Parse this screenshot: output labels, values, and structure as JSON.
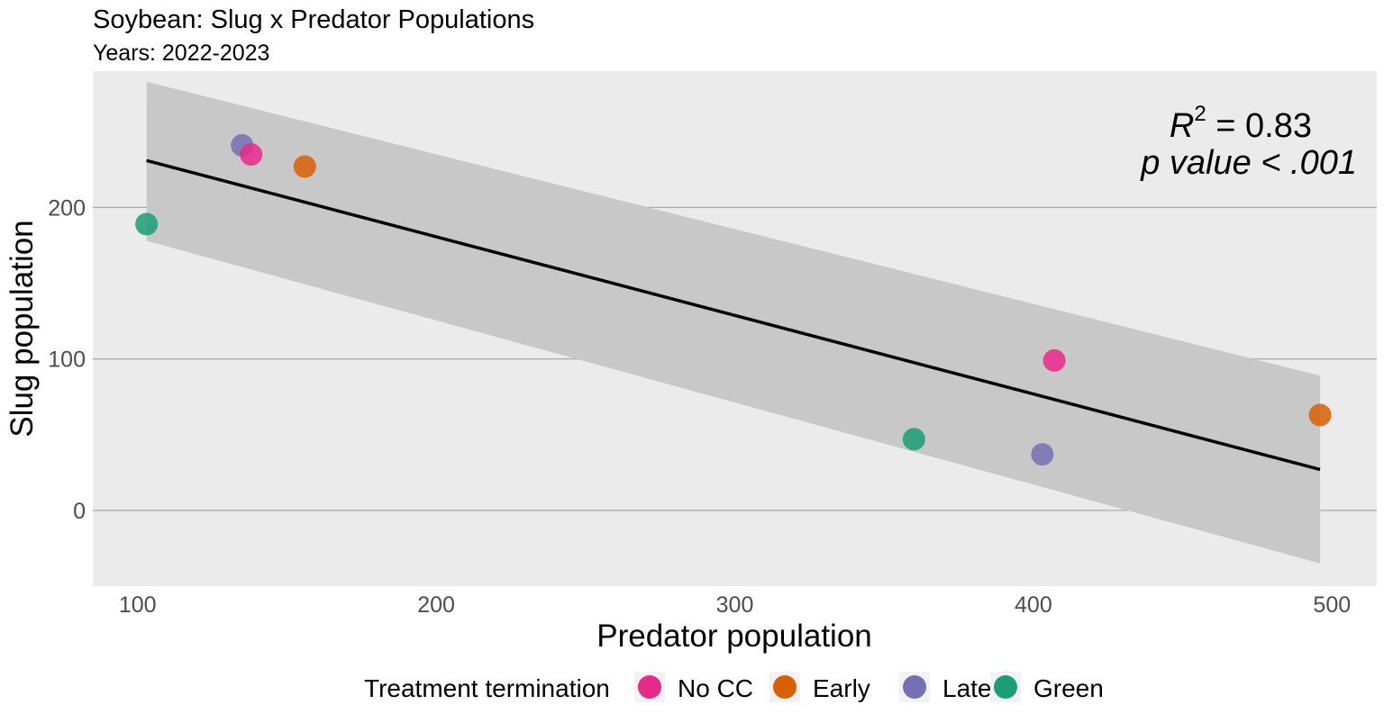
{
  "chart_data": {
    "type": "scatter",
    "title": "Soybean: Slug x Predator Populations",
    "subtitle": "Years: 2022-2023",
    "xlabel": "Predator population",
    "ylabel": "Slug population",
    "xlim": [
      85,
      515
    ],
    "ylim": [
      -50,
      290
    ],
    "xticks": [
      100,
      200,
      300,
      400,
      500
    ],
    "yticks": [
      0,
      100,
      200
    ],
    "grid": "horizontal major lines only",
    "background": "#ebebeb",
    "legend": {
      "title": "Treatment termination",
      "position": "bottom",
      "entries": [
        {
          "label": "No CC",
          "color": "#e7298a"
        },
        {
          "label": "Early",
          "color": "#d95f02"
        },
        {
          "label": "Late",
          "color": "#7570b3"
        },
        {
          "label": "Green",
          "color": "#1b9e77"
        }
      ]
    },
    "points": [
      {
        "x": 103,
        "y": 189,
        "group": "Green",
        "color": "#1b9e77"
      },
      {
        "x": 135,
        "y": 241,
        "group": "Late",
        "color": "#7570b3"
      },
      {
        "x": 138,
        "y": 235,
        "group": "No CC",
        "color": "#e7298a"
      },
      {
        "x": 156,
        "y": 227,
        "group": "Early",
        "color": "#d95f02"
      },
      {
        "x": 360,
        "y": 47,
        "group": "Green",
        "color": "#1b9e77"
      },
      {
        "x": 403,
        "y": 37,
        "group": "Late",
        "color": "#7570b3"
      },
      {
        "x": 407,
        "y": 99,
        "group": "No CC",
        "color": "#e7298a"
      },
      {
        "x": 496,
        "y": 63,
        "group": "Early",
        "color": "#d95f02"
      }
    ],
    "fit_line": {
      "x": [
        103,
        496
      ],
      "y": [
        231,
        27
      ],
      "color": "#000000"
    },
    "confidence_band": {
      "x": [
        103,
        496
      ],
      "upper": [
        283,
        89
      ],
      "lower": [
        178,
        -35
      ],
      "color": "#c8c8c8"
    },
    "annotation": {
      "r2_symbol": "R",
      "r2_superscript": "2",
      "r2_value": " = 0.83",
      "p_text": "p value < .001"
    }
  }
}
